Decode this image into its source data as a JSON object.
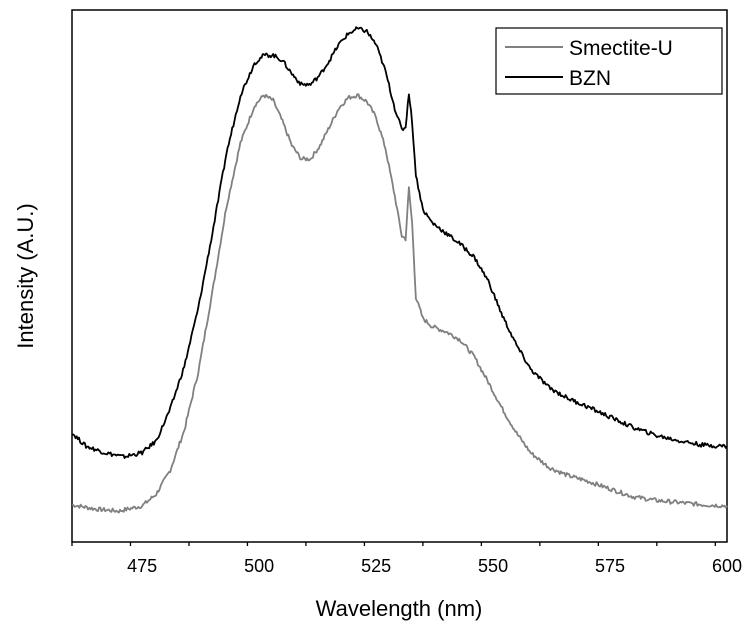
{
  "chart_data": {
    "type": "line",
    "title": "",
    "xlabel": "Wavelength (nm)",
    "ylabel": "Intensity (A.U.)",
    "xlim": [
      460,
      600
    ],
    "ylim": [
      0,
      1
    ],
    "y_tick_labels_shown": false,
    "x_ticks": [
      475,
      500,
      525,
      550,
      575,
      600
    ],
    "x_tick_labels": [
      "475",
      "500",
      "525",
      "550",
      "575",
      "600"
    ],
    "grid": false,
    "legend_position": "top-right",
    "legend": [
      "Smectite-U",
      "BZN"
    ],
    "series": [
      {
        "name": "Smectite-U",
        "color": "#808080",
        "x": [
          460,
          465,
          470,
          475,
          478,
          481,
          484,
          487,
          490,
          493,
          496,
          499,
          501,
          503,
          505,
          507,
          509,
          511,
          513,
          515,
          517,
          519,
          521,
          523,
          525,
          527,
          529,
          530.5,
          531.3,
          532,
          532.7,
          533.5,
          535,
          537,
          540,
          543,
          546,
          549,
          552,
          555,
          558,
          562,
          566,
          570,
          575,
          580,
          585,
          590,
          595,
          600
        ],
        "y": [
          0.07,
          0.062,
          0.058,
          0.068,
          0.09,
          0.135,
          0.21,
          0.32,
          0.47,
          0.63,
          0.75,
          0.82,
          0.84,
          0.83,
          0.79,
          0.745,
          0.72,
          0.72,
          0.745,
          0.78,
          0.815,
          0.835,
          0.84,
          0.828,
          0.798,
          0.74,
          0.65,
          0.575,
          0.57,
          0.665,
          0.6,
          0.46,
          0.42,
          0.405,
          0.395,
          0.38,
          0.348,
          0.3,
          0.25,
          0.205,
          0.168,
          0.14,
          0.125,
          0.115,
          0.1,
          0.085,
          0.078,
          0.074,
          0.07,
          0.068
        ]
      },
      {
        "name": "BZN",
        "color": "#000000",
        "x": [
          460,
          463,
          467,
          471,
          475,
          478,
          481,
          484,
          487,
          490,
          493,
          496,
          499,
          501,
          503,
          505,
          507,
          509,
          511,
          513,
          515,
          517,
          519,
          521,
          523,
          525,
          527,
          529,
          530.5,
          531.3,
          532,
          532.7,
          533.5,
          535,
          537,
          540,
          543,
          546,
          549,
          552,
          555,
          558,
          562,
          566,
          570,
          575,
          580,
          585,
          590,
          595,
          600
        ],
        "y": [
          0.205,
          0.18,
          0.168,
          0.16,
          0.168,
          0.19,
          0.25,
          0.33,
          0.44,
          0.58,
          0.73,
          0.84,
          0.9,
          0.915,
          0.915,
          0.905,
          0.88,
          0.86,
          0.86,
          0.878,
          0.905,
          0.935,
          0.955,
          0.965,
          0.96,
          0.935,
          0.885,
          0.815,
          0.775,
          0.78,
          0.845,
          0.79,
          0.69,
          0.625,
          0.6,
          0.58,
          0.56,
          0.535,
          0.49,
          0.425,
          0.37,
          0.325,
          0.29,
          0.27,
          0.255,
          0.235,
          0.215,
          0.2,
          0.19,
          0.182,
          0.18
        ]
      }
    ]
  }
}
